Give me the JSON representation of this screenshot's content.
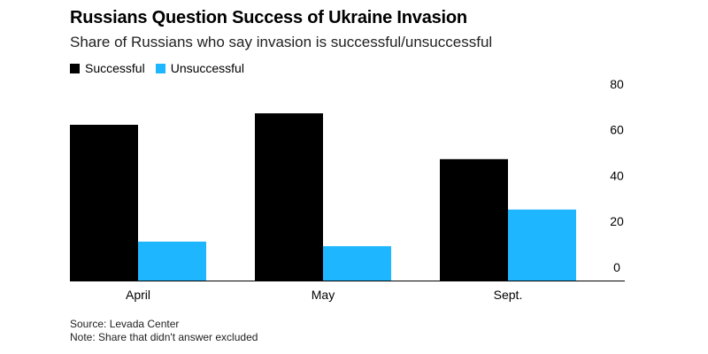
{
  "chart_data": {
    "type": "bar",
    "title": "Russians Question Success of Ukraine Invasion",
    "subtitle": "Share of Russians who say invasion is successful/unsuccessful",
    "categories": [
      "April",
      "May",
      "Sept."
    ],
    "series": [
      {
        "name": "Successful",
        "values": [
          68,
          73,
          53
        ],
        "color": "#000000"
      },
      {
        "name": "Unsuccessful",
        "values": [
          17,
          15,
          31
        ],
        "color": "#1EB7FF"
      }
    ],
    "ylim": [
      0,
      85
    ],
    "yticks": [
      0,
      20,
      40,
      60,
      80
    ],
    "grid": false,
    "legend_position": "top-left",
    "xlabel": "",
    "ylabel": "",
    "source": "Source: Levada Center",
    "note": "Note: Share that didn't answer excluded"
  }
}
